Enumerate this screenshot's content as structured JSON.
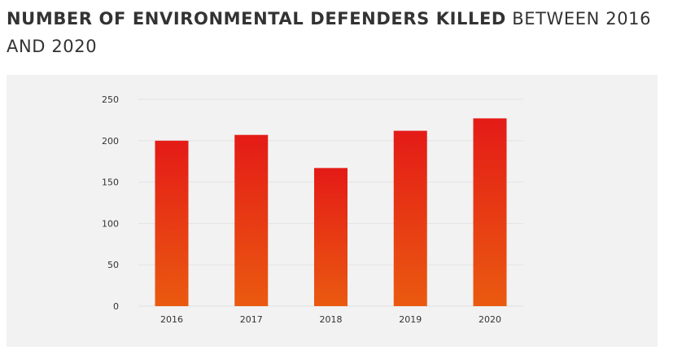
{
  "title": {
    "bold": "NUMBER OF ENVIRONMENTAL DEFENDERS KILLED",
    "rest": " BETWEEN 2016 AND 2020"
  },
  "chart_data": {
    "type": "bar",
    "categories": [
      "2016",
      "2017",
      "2018",
      "2019",
      "2020"
    ],
    "values": [
      200,
      207,
      167,
      212,
      227
    ],
    "title": "",
    "xlabel": "",
    "ylabel": "",
    "ylim": [
      0,
      250
    ],
    "yticks": [
      "0",
      "50",
      "100",
      "150",
      "200",
      "250"
    ],
    "grid": true,
    "legend": "none",
    "colors": {
      "bar_top": "#e41b17",
      "bar_bottom": "#ea5a10",
      "grid": "#e3e3e3",
      "background": "#f2f2f2"
    }
  }
}
